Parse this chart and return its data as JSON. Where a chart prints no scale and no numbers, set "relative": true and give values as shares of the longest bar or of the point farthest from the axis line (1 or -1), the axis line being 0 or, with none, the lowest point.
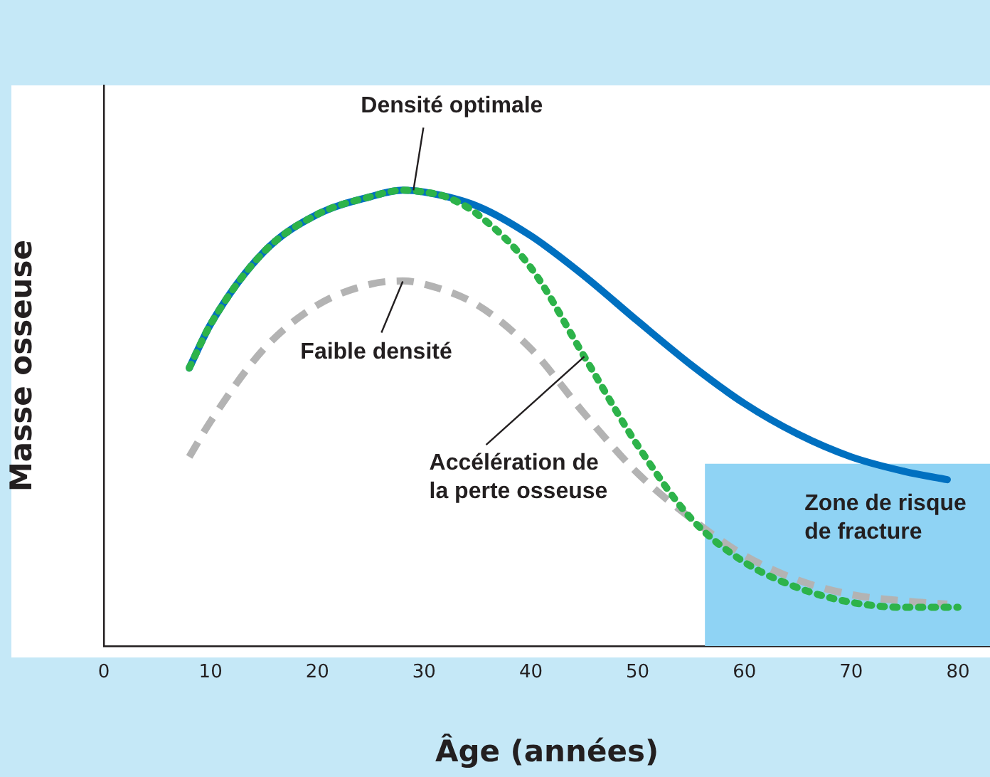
{
  "chart_data": {
    "type": "line",
    "xlabel": "Âge (années)",
    "ylabel": "Masse osseuse",
    "relative": true,
    "xlim": [
      0,
      83
    ],
    "xticks": [
      0,
      10,
      20,
      30,
      40,
      50,
      60,
      70,
      80
    ],
    "grid": false,
    "legend": false,
    "marker": "none",
    "series": [
      {
        "color": "#0070c0",
        "line_style": "solid",
        "x": [
          8,
          10,
          15,
          20,
          25,
          28,
          30,
          35,
          40,
          45,
          50,
          55,
          60,
          65,
          70,
          75,
          79
        ],
        "values": [
          0.61,
          0.706,
          0.865,
          0.947,
          0.986,
          1,
          0.996,
          0.965,
          0.9,
          0.812,
          0.713,
          0.617,
          0.532,
          0.465,
          0.415,
          0.383,
          0.365
        ]
      },
      {
        "color": "#b3b3b3",
        "line_style": "dashed",
        "x": [
          8,
          10,
          15,
          20,
          25,
          28,
          30,
          35,
          40,
          45,
          50,
          55,
          60,
          65,
          70,
          75,
          79
        ],
        "values": [
          0.415,
          0.493,
          0.652,
          0.748,
          0.794,
          0.801,
          0.794,
          0.748,
          0.652,
          0.51,
          0.379,
          0.28,
          0.199,
          0.145,
          0.113,
          0.099,
          0.092
        ]
      },
      {
        "color": "#2db34a",
        "line_style": "dotted",
        "x": [
          8,
          10,
          15,
          20,
          25,
          28,
          30,
          32,
          35,
          40,
          45,
          50,
          55,
          60,
          65,
          70,
          75,
          80
        ],
        "values": [
          0.61,
          0.706,
          0.865,
          0.947,
          0.986,
          1,
          0.996,
          0.986,
          0.947,
          0.83,
          0.635,
          0.44,
          0.28,
          0.184,
          0.128,
          0.096,
          0.085,
          0.085
        ]
      }
    ],
    "bands": [
      {
        "axis": "x",
        "from": 56.3,
        "to": 83,
        "label": "Zone de risque de fracture",
        "color": "#8fd3f4"
      }
    ],
    "annotations": [
      {
        "text": "Densité optimale",
        "x": 29,
        "y": 1
      },
      {
        "text": "Faible densité",
        "x": 28,
        "y": 0.8
      },
      {
        "text": "Accélération de la perte osseuse",
        "x": 45,
        "y": 0.635
      }
    ]
  }
}
